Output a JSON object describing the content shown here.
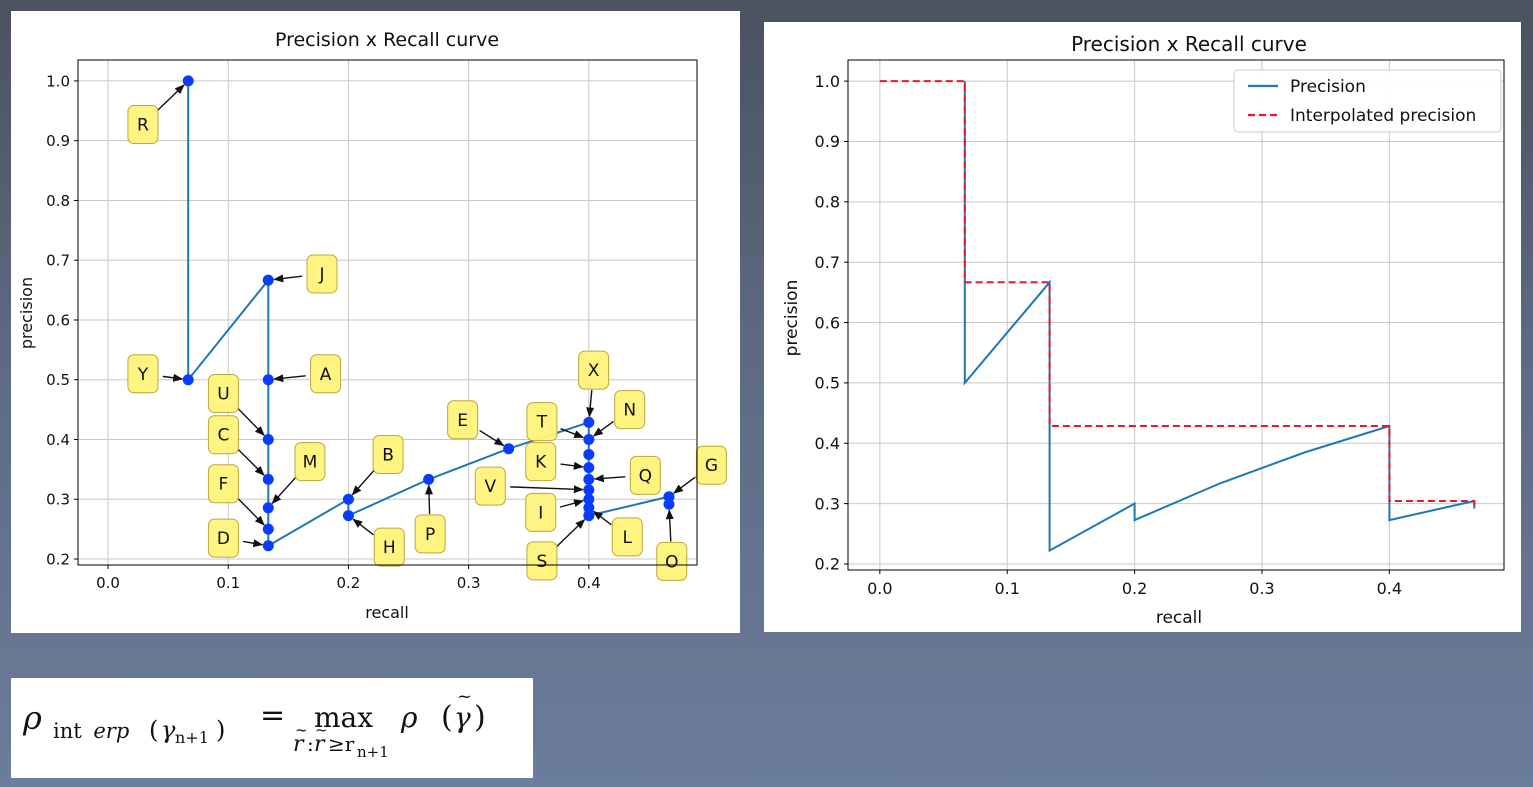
{
  "chart_data": [
    {
      "type": "line",
      "title": "Precision x Recall curve",
      "xlabel": "recall",
      "ylabel": "precision",
      "xlim": [
        -0.025,
        0.49
      ],
      "ylim": [
        0.19,
        1.035
      ],
      "xticks": [
        0.0,
        0.1,
        0.2,
        0.3,
        0.4
      ],
      "xtick_labels": [
        "0.0",
        "0.1",
        "0.2",
        "0.3",
        "0.4"
      ],
      "yticks": [
        0.2,
        0.3,
        0.4,
        0.5,
        0.6,
        0.7,
        0.8,
        0.9,
        1.0
      ],
      "ytick_labels": [
        "0.2",
        "0.3",
        "0.4",
        "0.5",
        "0.6",
        "0.7",
        "0.8",
        "0.9",
        "1.0"
      ],
      "grid": true,
      "series": [
        {
          "color": "#1f77b4",
          "marker_color": "#0a3cff",
          "x": [
            0.0667,
            0.0667,
            0.1333,
            0.1333,
            0.1333,
            0.1333,
            0.1333,
            0.1333,
            0.1333,
            0.2,
            0.2,
            0.2667,
            0.3333,
            0.4,
            0.4,
            0.4,
            0.4,
            0.4,
            0.4,
            0.4,
            0.4,
            0.4,
            0.4667,
            0.4667
          ],
          "y": [
            1.0,
            0.5,
            0.6667,
            0.5,
            0.4,
            0.3333,
            0.2857,
            0.25,
            0.2222,
            0.3,
            0.2727,
            0.3333,
            0.3846,
            0.4286,
            0.4,
            0.375,
            0.3529,
            0.3333,
            0.3158,
            0.3,
            0.2857,
            0.2727,
            0.3043,
            0.2917
          ]
        }
      ],
      "annotations": [
        {
          "text": "R",
          "x": 0.0667,
          "y": 1.0,
          "tx": 0.029,
          "ty": 0.927
        },
        {
          "text": "Y",
          "x": 0.0667,
          "y": 0.5,
          "tx": 0.029,
          "ty": 0.51
        },
        {
          "text": "J",
          "x": 0.1333,
          "y": 0.6667,
          "tx": 0.178,
          "ty": 0.677
        },
        {
          "text": "A",
          "x": 0.1333,
          "y": 0.5,
          "tx": 0.181,
          "ty": 0.51
        },
        {
          "text": "U",
          "x": 0.1333,
          "y": 0.4,
          "tx": 0.096,
          "ty": 0.477
        },
        {
          "text": "C",
          "x": 0.1333,
          "y": 0.3333,
          "tx": 0.096,
          "ty": 0.408
        },
        {
          "text": "F",
          "x": 0.1333,
          "y": 0.25,
          "tx": 0.096,
          "ty": 0.326
        },
        {
          "text": "D",
          "x": 0.1333,
          "y": 0.2222,
          "tx": 0.096,
          "ty": 0.235
        },
        {
          "text": "M",
          "x": 0.1333,
          "y": 0.2857,
          "tx": 0.168,
          "ty": 0.363
        },
        {
          "text": "B",
          "x": 0.2,
          "y": 0.3,
          "tx": 0.233,
          "ty": 0.375
        },
        {
          "text": "H",
          "x": 0.2,
          "y": 0.2727,
          "tx": 0.234,
          "ty": 0.22
        },
        {
          "text": "P",
          "x": 0.2667,
          "y": 0.3333,
          "tx": 0.268,
          "ty": 0.242
        },
        {
          "text": "E",
          "x": 0.3333,
          "y": 0.3846,
          "tx": 0.295,
          "ty": 0.433
        },
        {
          "text": "T",
          "x": 0.4,
          "y": 0.4,
          "tx": 0.361,
          "ty": 0.43
        },
        {
          "text": "X",
          "x": 0.4,
          "y": 0.4286,
          "tx": 0.404,
          "ty": 0.516
        },
        {
          "text": "N",
          "x": 0.4,
          "y": 0.4,
          "tx": 0.434,
          "ty": 0.45
        },
        {
          "text": "K",
          "x": 0.4,
          "y": 0.3529,
          "tx": 0.36,
          "ty": 0.363
        },
        {
          "text": "Q",
          "x": 0.4,
          "y": 0.3333,
          "tx": 0.447,
          "ty": 0.34
        },
        {
          "text": "V",
          "x": 0.4,
          "y": 0.3158,
          "tx": 0.318,
          "ty": 0.322
        },
        {
          "text": "I",
          "x": 0.4,
          "y": 0.3,
          "tx": 0.36,
          "ty": 0.278
        },
        {
          "text": "S",
          "x": 0.4,
          "y": 0.2727,
          "tx": 0.361,
          "ty": 0.197
        },
        {
          "text": "L",
          "x": 0.4,
          "y": 0.2857,
          "tx": 0.432,
          "ty": 0.237
        },
        {
          "text": "O",
          "x": 0.4667,
          "y": 0.2917,
          "tx": 0.469,
          "ty": 0.196
        },
        {
          "text": "G",
          "x": 0.4667,
          "y": 0.3043,
          "tx": 0.502,
          "ty": 0.357
        }
      ]
    },
    {
      "type": "line",
      "title": "Precision x Recall curve",
      "xlabel": "recall",
      "ylabel": "precision",
      "xlim": [
        -0.025,
        0.49
      ],
      "ylim": [
        0.19,
        1.035
      ],
      "xticks": [
        0.0,
        0.1,
        0.2,
        0.3,
        0.4
      ],
      "xtick_labels": [
        "0.0",
        "0.1",
        "0.2",
        "0.3",
        "0.4"
      ],
      "yticks": [
        0.2,
        0.3,
        0.4,
        0.5,
        0.6,
        0.7,
        0.8,
        0.9,
        1.0
      ],
      "ytick_labels": [
        "0.2",
        "0.3",
        "0.4",
        "0.5",
        "0.6",
        "0.7",
        "0.8",
        "0.9",
        "1.0"
      ],
      "grid": true,
      "legend_position": "top-right",
      "series": [
        {
          "name": "Precision",
          "style": "solid",
          "color": "#1f77b4",
          "x": [
            0.0667,
            0.0667,
            0.1333,
            0.1333,
            0.2,
            0.2,
            0.2667,
            0.3333,
            0.4,
            0.4,
            0.4667,
            0.4667
          ],
          "y": [
            1.0,
            0.5,
            0.6667,
            0.2222,
            0.3,
            0.2727,
            0.3333,
            0.3846,
            0.4286,
            0.2727,
            0.3043,
            0.2917
          ]
        },
        {
          "name": "Interpolated precision",
          "style": "dashed",
          "color": "#e8192c",
          "x": [
            0.0,
            0.0667,
            0.0667,
            0.1333,
            0.1333,
            0.4,
            0.4,
            0.4667,
            0.4667
          ],
          "y": [
            1.0,
            1.0,
            0.6667,
            0.6667,
            0.4286,
            0.4286,
            0.3043,
            0.3043,
            0.2917
          ]
        }
      ]
    }
  ],
  "formula": {
    "rho": "ρ",
    "interp_sub": "int",
    "interp_sub_italic": "erp",
    "gamma_arg": "γ",
    "gamma_sub": "n+1",
    "equals": "=",
    "max_op": "max",
    "limit_r": "r",
    "limit_colon": ":",
    "limit_ge": "≥r",
    "limit_sub": "n+1",
    "rho2": "ρ",
    "gamma_tilde": "γ",
    "tilde": "~",
    "paren_open": "(",
    "paren_close": ")"
  }
}
